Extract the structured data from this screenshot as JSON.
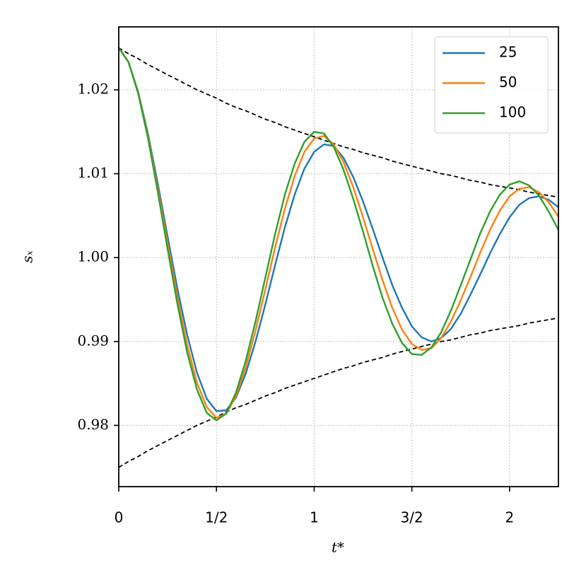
{
  "chart_data": {
    "type": "line",
    "xlabel": "t*",
    "ylabel": "sₓ",
    "x": [
      0,
      0.05,
      0.1,
      0.15,
      0.2,
      0.25,
      0.3,
      0.35,
      0.4,
      0.45,
      0.5,
      0.55,
      0.6,
      0.65,
      0.7,
      0.75,
      0.8,
      0.85,
      0.9,
      0.95,
      1.0,
      1.05,
      1.1,
      1.15,
      1.2,
      1.25,
      1.3,
      1.35,
      1.4,
      1.45,
      1.5,
      1.55,
      1.6,
      1.65,
      1.7,
      1.75,
      1.8,
      1.85,
      1.9,
      1.95,
      2.0,
      2.05,
      2.1,
      2.15,
      2.2,
      2.25
    ],
    "series": [
      {
        "name": "25",
        "color": "#1f77b4",
        "values": [
          1.025,
          1.0233,
          1.0197,
          1.0147,
          1.0088,
          1.0025,
          0.9963,
          0.9908,
          0.9863,
          0.9832,
          0.9817,
          0.9818,
          0.9833,
          0.9862,
          0.99,
          0.9944,
          0.9991,
          1.0036,
          1.0075,
          1.0106,
          1.0126,
          1.0135,
          1.0133,
          1.0119,
          1.0096,
          1.0067,
          1.0034,
          1.0,
          0.9967,
          0.994,
          0.9918,
          0.9905,
          0.99,
          0.9904,
          0.9915,
          0.9933,
          0.9956,
          0.998,
          1.0005,
          1.0028,
          1.0048,
          1.0063,
          1.0071,
          1.0073,
          1.0069,
          1.006
        ]
      },
      {
        "name": "50",
        "color": "#ff7f0e",
        "values": [
          1.025,
          1.0233,
          1.0196,
          1.0144,
          1.0082,
          1.0017,
          0.9953,
          0.9896,
          0.9851,
          0.9822,
          0.9809,
          0.9814,
          0.9835,
          0.9869,
          0.9913,
          0.9962,
          1.0012,
          1.0058,
          1.0097,
          1.0126,
          1.0142,
          1.0145,
          1.0135,
          1.0114,
          1.0084,
          1.0048,
          1.001,
          0.9973,
          0.994,
          0.9914,
          0.9897,
          0.989,
          0.9892,
          0.9904,
          0.9924,
          0.9949,
          0.9977,
          1.0006,
          1.0033,
          1.0056,
          1.0073,
          1.0082,
          1.0084,
          1.0078,
          1.0066,
          1.0049
        ]
      },
      {
        "name": "100",
        "color": "#2ca02c",
        "values": [
          1.025,
          1.0233,
          1.0195,
          1.0142,
          1.0078,
          1.001,
          0.9945,
          0.9887,
          0.9843,
          0.9815,
          0.9806,
          0.9814,
          0.9839,
          0.9877,
          0.9924,
          0.9976,
          1.0028,
          1.0075,
          1.0112,
          1.0138,
          1.015,
          1.0148,
          1.0132,
          1.0105,
          1.007,
          1.0031,
          0.999,
          0.9952,
          0.9921,
          0.9898,
          0.9885,
          0.9884,
          0.9893,
          0.9911,
          0.9937,
          0.9967,
          0.9998,
          1.0029,
          1.0055,
          1.0075,
          1.0087,
          1.0091,
          1.0086,
          1.0074,
          1.0055,
          1.0033
        ]
      }
    ],
    "envelopes": [
      {
        "color": "#000000",
        "line_style": "dashed",
        "values": [
          1.025,
          1.0243,
          1.0237,
          1.023,
          1.0224,
          1.0218,
          1.0212,
          1.0206,
          1.02,
          1.0195,
          1.019,
          1.0184,
          1.0179,
          1.0175,
          1.017,
          1.0165,
          1.0161,
          1.0156,
          1.0152,
          1.0148,
          1.0144,
          1.014,
          1.0136,
          1.0132,
          1.0129,
          1.0125,
          1.0122,
          1.0119,
          1.0115,
          1.0112,
          1.0109,
          1.0106,
          1.0103,
          1.01,
          1.0098,
          1.0095,
          1.0092,
          1.009,
          1.0087,
          1.0085,
          1.0083,
          1.0081,
          1.0078,
          1.0076,
          1.0074,
          1.0072
        ]
      },
      {
        "color": "#000000",
        "line_style": "dashed",
        "values": [
          0.975,
          0.9757,
          0.9763,
          0.977,
          0.9776,
          0.9782,
          0.9788,
          0.9794,
          0.98,
          0.9805,
          0.981,
          0.9816,
          0.9821,
          0.9825,
          0.983,
          0.9835,
          0.9839,
          0.9844,
          0.9848,
          0.9852,
          0.9856,
          0.986,
          0.9864,
          0.9868,
          0.9871,
          0.9875,
          0.9878,
          0.9881,
          0.9885,
          0.9888,
          0.9891,
          0.9894,
          0.9897,
          0.99,
          0.9902,
          0.9905,
          0.9908,
          0.991,
          0.9913,
          0.9915,
          0.9917,
          0.9919,
          0.9922,
          0.9924,
          0.9926,
          0.9928
        ]
      }
    ],
    "xlim": [
      0,
      2.25
    ],
    "ylim": [
      0.9727,
      1.0275
    ],
    "xticks": [
      0,
      {
        "value": 0.5,
        "label": "1/2"
      },
      1,
      {
        "value": 1.5,
        "label": "3/2"
      },
      2
    ],
    "yticks": [
      0.98,
      0.99,
      {
        "value": 1,
        "label": "1.00"
      },
      1.01,
      1.02
    ],
    "grid": true,
    "legend": "upper right"
  }
}
